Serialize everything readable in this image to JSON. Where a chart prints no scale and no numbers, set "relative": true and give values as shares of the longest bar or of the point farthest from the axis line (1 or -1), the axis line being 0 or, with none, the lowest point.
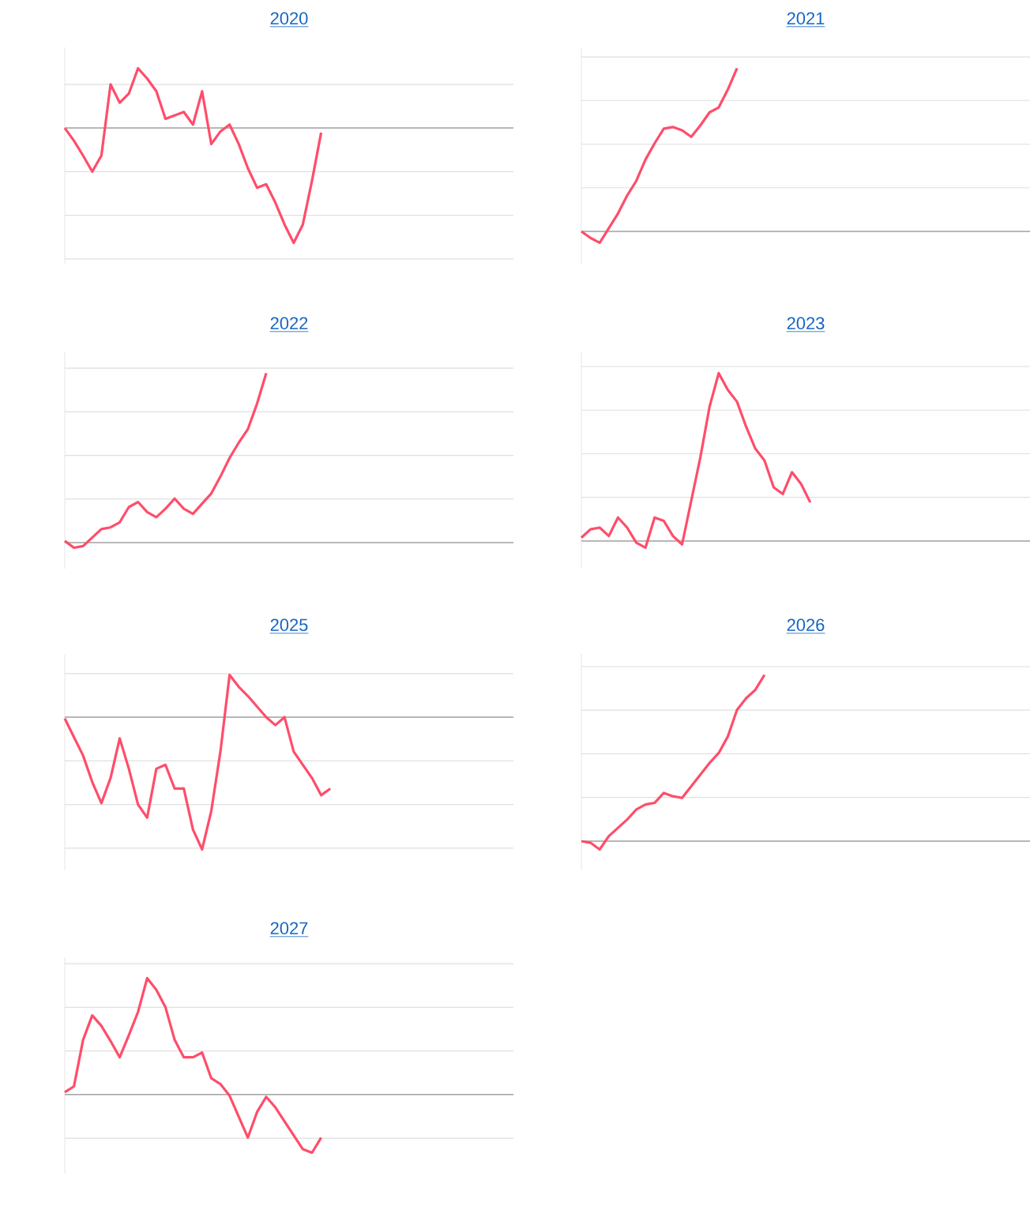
{
  "chart_data": [
    {
      "type": "line",
      "title": "2020",
      "relative": true,
      "grid": "y",
      "categories": [
        null,
        null,
        null,
        null,
        null,
        null,
        null,
        null,
        null,
        null,
        null,
        null,
        null,
        null,
        null,
        null,
        null,
        null,
        null,
        null,
        null,
        null,
        null,
        null,
        null,
        null,
        null,
        null,
        null,
        null,
        null,
        null,
        null,
        null,
        null,
        null,
        null,
        null,
        null,
        null,
        null,
        null,
        null,
        null,
        null,
        null,
        null,
        null,
        null,
        null
      ],
      "series": [
        {
          "color": "#ff4d6a",
          "values": [
            0,
            -0.11,
            -0.24,
            -0.38,
            -0.24,
            0.38,
            0.22,
            0.3,
            0.52,
            0.43,
            0.32,
            0.08,
            0.11,
            0.14,
            0.03,
            0.32,
            -0.14,
            -0.03,
            0.03,
            -0.14,
            -0.35,
            -0.52,
            -0.49,
            -0.65,
            -0.84,
            -1,
            -0.84,
            -0.46,
            -0.04,
            null,
            null,
            null,
            null,
            null,
            null,
            null,
            null,
            null,
            null,
            null,
            null,
            null,
            null,
            null,
            null,
            null,
            null,
            null,
            null,
            null
          ]
        }
      ]
    },
    {
      "type": "line",
      "title": "2021",
      "relative": true,
      "grid": "y",
      "categories": [
        null,
        null,
        null,
        null,
        null,
        null,
        null,
        null,
        null,
        null,
        null,
        null,
        null,
        null,
        null,
        null,
        null,
        null,
        null,
        null,
        null,
        null,
        null,
        null,
        null,
        null,
        null,
        null,
        null,
        null,
        null,
        null,
        null,
        null,
        null,
        null,
        null,
        null,
        null,
        null,
        null,
        null,
        null,
        null,
        null,
        null,
        null,
        null,
        null,
        null
      ],
      "series": [
        {
          "color": "#ff4d6a",
          "values": [
            0,
            -0.04,
            -0.07,
            0.02,
            0.11,
            0.22,
            0.31,
            0.44,
            0.54,
            0.63,
            0.64,
            0.62,
            0.58,
            0.65,
            0.73,
            0.76,
            0.87,
            1,
            null,
            null,
            null,
            null,
            null,
            null,
            null,
            null,
            null,
            null,
            null,
            null,
            null,
            null,
            null,
            null,
            null,
            null,
            null,
            null,
            null,
            null,
            null,
            null,
            null,
            null,
            null,
            null,
            null,
            null,
            null,
            null
          ]
        }
      ]
    },
    {
      "type": "line",
      "title": "2022",
      "relative": true,
      "grid": "y",
      "categories": [
        null,
        null,
        null,
        null,
        null,
        null,
        null,
        null,
        null,
        null,
        null,
        null,
        null,
        null,
        null,
        null,
        null,
        null,
        null,
        null,
        null,
        null,
        null,
        null,
        null,
        null,
        null,
        null,
        null,
        null,
        null,
        null,
        null,
        null,
        null,
        null,
        null,
        null,
        null,
        null,
        null,
        null,
        null,
        null,
        null,
        null,
        null,
        null,
        null,
        null
      ],
      "series": [
        {
          "color": "#ff4d6a",
          "values": [
            0.01,
            -0.03,
            -0.02,
            0.03,
            0.08,
            0.09,
            0.12,
            0.21,
            0.24,
            0.18,
            0.15,
            0.2,
            0.26,
            0.2,
            0.17,
            0.23,
            0.29,
            0.39,
            0.5,
            0.59,
            0.67,
            0.82,
            1,
            null,
            null,
            null,
            null,
            null,
            null,
            null,
            null,
            null,
            null,
            null,
            null,
            null,
            null,
            null,
            null,
            null,
            null,
            null,
            null,
            null,
            null,
            null,
            null,
            null,
            null,
            null
          ]
        }
      ]
    },
    {
      "type": "line",
      "title": "2023",
      "relative": true,
      "grid": "y",
      "categories": [
        null,
        null,
        null,
        null,
        null,
        null,
        null,
        null,
        null,
        null,
        null,
        null,
        null,
        null,
        null,
        null,
        null,
        null,
        null,
        null,
        null,
        null,
        null,
        null,
        null,
        null,
        null,
        null,
        null,
        null,
        null,
        null,
        null,
        null,
        null,
        null,
        null,
        null,
        null,
        null,
        null,
        null,
        null,
        null,
        null,
        null,
        null,
        null,
        null,
        null
      ],
      "series": [
        {
          "color": "#ff4d6a",
          "values": [
            0.02,
            0.07,
            0.08,
            0.03,
            0.14,
            0.08,
            -0.01,
            -0.04,
            0.14,
            0.12,
            0.03,
            -0.02,
            0.24,
            0.5,
            0.8,
            1,
            0.9,
            0.83,
            0.68,
            0.55,
            0.48,
            0.32,
            0.28,
            0.41,
            0.34,
            0.23,
            null,
            null,
            null,
            null,
            null,
            null,
            null,
            null,
            null,
            null,
            null,
            null,
            null,
            null,
            null,
            null,
            null,
            null,
            null,
            null,
            null,
            null,
            null,
            null
          ]
        }
      ]
    },
    {
      "type": "line",
      "title": "2025",
      "relative": true,
      "grid": "y",
      "categories": [
        null,
        null,
        null,
        null,
        null,
        null,
        null,
        null,
        null,
        null,
        null,
        null,
        null,
        null,
        null,
        null,
        null,
        null,
        null,
        null,
        null,
        null,
        null,
        null,
        null,
        null,
        null,
        null,
        null,
        null,
        null,
        null,
        null,
        null,
        null,
        null,
        null,
        null,
        null,
        null,
        null,
        null,
        null,
        null,
        null,
        null,
        null,
        null,
        null,
        null
      ],
      "series": [
        {
          "color": "#ff4d6a",
          "values": [
            -0.01,
            -0.15,
            -0.29,
            -0.49,
            -0.65,
            -0.46,
            -0.16,
            -0.39,
            -0.66,
            -0.76,
            -0.39,
            -0.36,
            -0.54,
            -0.54,
            -0.85,
            -1,
            -0.71,
            -0.26,
            0.32,
            0.23,
            0.16,
            0.08,
            0,
            -0.06,
            0,
            -0.26,
            -0.36,
            -0.46,
            -0.59,
            -0.54,
            null,
            null,
            null,
            null,
            null,
            null,
            null,
            null,
            null,
            null,
            null,
            null,
            null,
            null,
            null,
            null,
            null,
            null,
            null,
            null
          ]
        }
      ]
    },
    {
      "type": "line",
      "title": "2026",
      "relative": true,
      "grid": "y",
      "categories": [
        null,
        null,
        null,
        null,
        null,
        null,
        null,
        null,
        null,
        null,
        null,
        null,
        null,
        null,
        null,
        null,
        null,
        null,
        null,
        null,
        null,
        null,
        null,
        null,
        null,
        null,
        null,
        null,
        null,
        null,
        null,
        null,
        null,
        null,
        null,
        null,
        null,
        null,
        null,
        null,
        null,
        null,
        null,
        null,
        null,
        null,
        null,
        null,
        null,
        null
      ],
      "series": [
        {
          "color": "#ff4d6a",
          "values": [
            0,
            -0.01,
            -0.05,
            0.03,
            0.08,
            0.13,
            0.19,
            0.22,
            0.23,
            0.29,
            0.27,
            0.26,
            0.33,
            0.4,
            0.47,
            0.53,
            0.63,
            0.79,
            0.86,
            0.91,
            1,
            null,
            null,
            null,
            null,
            null,
            null,
            null,
            null,
            null,
            null,
            null,
            null,
            null,
            null,
            null,
            null,
            null,
            null,
            null,
            null,
            null,
            null,
            null,
            null,
            null,
            null,
            null,
            null,
            null
          ]
        }
      ]
    },
    {
      "type": "line",
      "title": "2027",
      "relative": true,
      "grid": "y",
      "categories": [
        null,
        null,
        null,
        null,
        null,
        null,
        null,
        null,
        null,
        null,
        null,
        null,
        null,
        null,
        null,
        null,
        null,
        null,
        null,
        null,
        null,
        null,
        null,
        null,
        null,
        null,
        null,
        null,
        null,
        null,
        null,
        null,
        null,
        null,
        null,
        null,
        null,
        null,
        null,
        null,
        null,
        null,
        null,
        null,
        null,
        null,
        null,
        null,
        null,
        null
      ],
      "series": [
        {
          "color": "#ff4d6a",
          "values": [
            0.02,
            0.07,
            0.47,
            0.68,
            0.59,
            0.46,
            0.32,
            0.51,
            0.71,
            1,
            0.9,
            0.75,
            0.47,
            0.32,
            0.32,
            0.36,
            0.14,
            0.09,
            -0.01,
            -0.19,
            -0.37,
            -0.15,
            -0.02,
            -0.11,
            -0.23,
            -0.35,
            -0.47,
            -0.5,
            -0.37,
            null,
            null,
            null,
            null,
            null,
            null,
            null,
            null,
            null,
            null,
            null,
            null,
            null,
            null,
            null,
            null,
            null,
            null,
            null,
            null,
            null
          ]
        }
      ]
    }
  ]
}
